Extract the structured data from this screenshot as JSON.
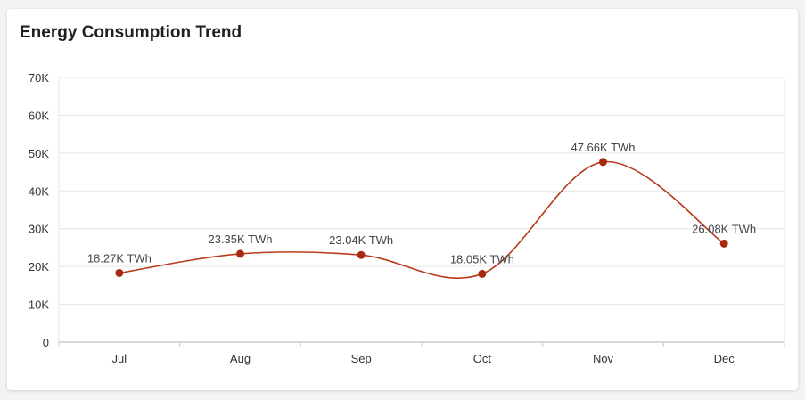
{
  "card": {
    "title": "Energy Consumption Trend"
  },
  "colors": {
    "line": "#b83a1b",
    "point": "#a8290f",
    "grid": "#e6e6e6",
    "axis": "#cccccc"
  },
  "chart_data": {
    "type": "line",
    "title": "Energy Consumption Trend",
    "xlabel": "",
    "ylabel": "",
    "categories": [
      "Jul",
      "Aug",
      "Sep",
      "Oct",
      "Nov",
      "Dec"
    ],
    "values": [
      18.27,
      23.35,
      23.04,
      18.05,
      47.66,
      26.08
    ],
    "value_unit": "K TWh",
    "data_labels": [
      "18.27K TWh",
      "23.35K TWh",
      "23.04K TWh",
      "18.05K TWh",
      "47.66K TWh",
      "26.08K TWh"
    ],
    "ylim": [
      0,
      70
    ],
    "y_ticks": [
      0,
      10,
      20,
      30,
      40,
      50,
      60,
      70
    ],
    "y_tick_labels": [
      "0",
      "10K",
      "20K",
      "30K",
      "40K",
      "50K",
      "60K",
      "70K"
    ],
    "grid": true,
    "smooth": true,
    "legend": "none"
  }
}
